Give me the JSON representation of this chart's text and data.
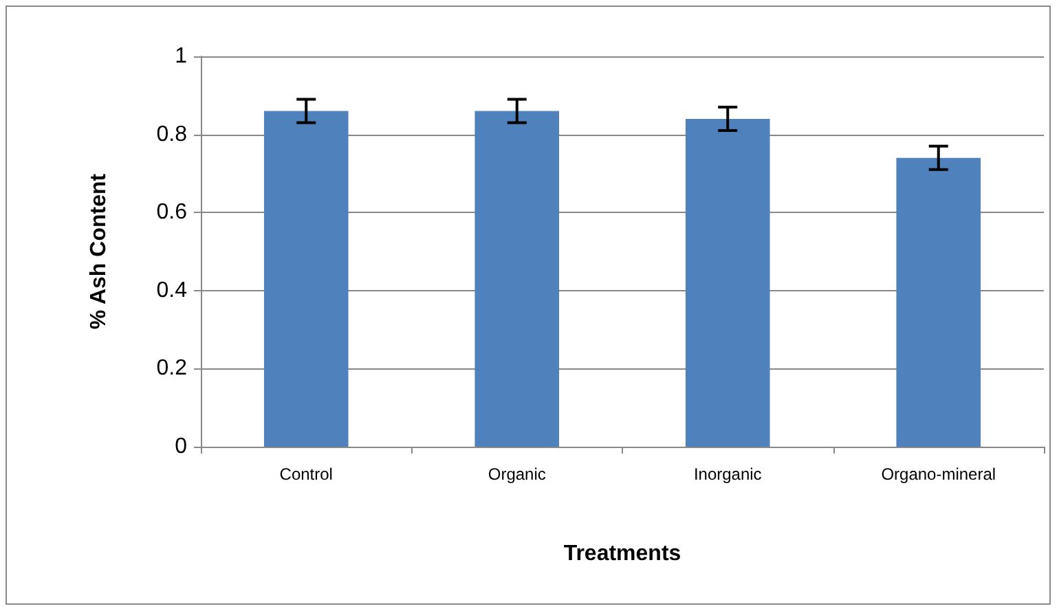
{
  "chart_data": {
    "type": "bar",
    "xlabel": "Treatments",
    "ylabel": "% Ash Content",
    "categories": [
      "Control",
      "Organic",
      "Inorganic",
      "Organo-mineral"
    ],
    "values": [
      0.86,
      0.86,
      0.84,
      0.74
    ],
    "errors": [
      0.03,
      0.03,
      0.03,
      0.03
    ],
    "color": "#4f81bd",
    "ylim": [
      0,
      1
    ],
    "yticks": [
      0,
      0.2,
      0.4,
      0.6,
      0.8,
      1
    ],
    "grid": "y"
  }
}
